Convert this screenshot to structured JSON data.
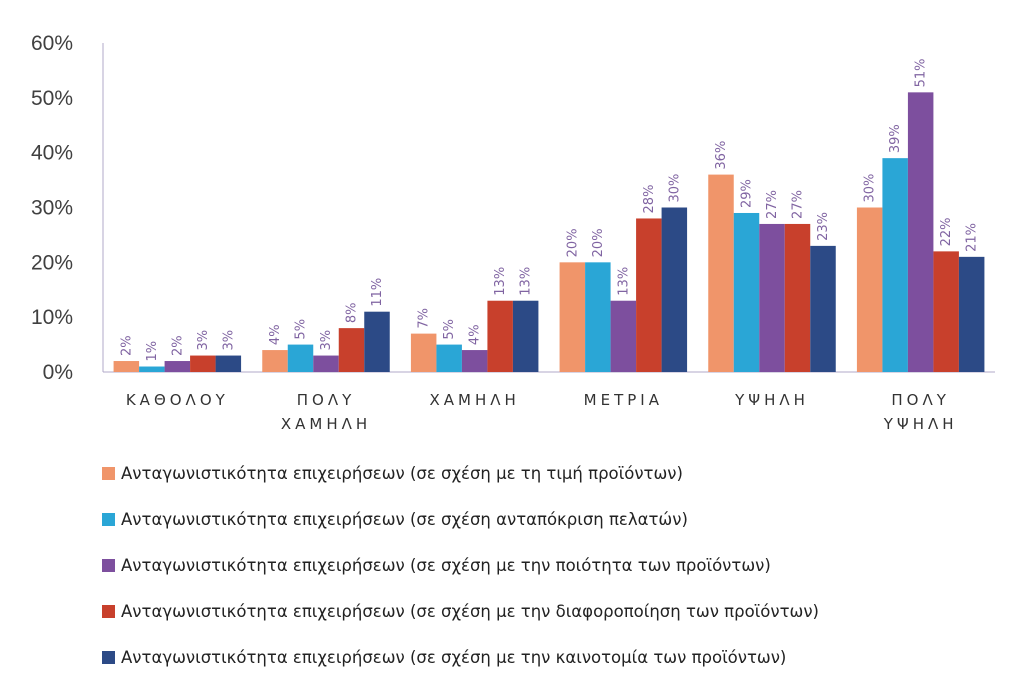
{
  "chart_data": {
    "type": "bar",
    "categories": [
      [
        "ΚΑΘΟΛΟΥ"
      ],
      [
        "ΠΟΛΥ",
        "ΧΑΜΗΛΗ"
      ],
      [
        "ΧΑΜΗΛΗ"
      ],
      [
        "ΜΕΤΡΙΑ"
      ],
      [
        "ΥΨΗΛΗ"
      ],
      [
        "ΠΟΛΥ",
        "ΥΨΗΛΗ"
      ]
    ],
    "ylim": [
      0,
      60
    ],
    "yticks": [
      "0%",
      "10%",
      "20%",
      "30%",
      "40%",
      "50%",
      "60%"
    ],
    "value_format": "percent",
    "grid": false,
    "legend_position": "bottom",
    "series": [
      {
        "name": "Ανταγωνιστικότητα επιχειρήσεων (σε σχέση με τη τιμή προϊόντων)",
        "color": "#f0956a",
        "values": [
          2,
          4,
          7,
          20,
          36,
          30
        ],
        "labels": [
          "2%",
          "4%",
          "7%",
          "20%",
          "36%",
          "30%"
        ]
      },
      {
        "name": "Ανταγωνιστικότητα επιχειρήσεων (σε σχέση ανταπόκριση πελατών)",
        "color": "#2aa6d6",
        "values": [
          1,
          5,
          5,
          20,
          29,
          39
        ],
        "labels": [
          "1%",
          "5%",
          "5%",
          "20%",
          "29%",
          "39%"
        ]
      },
      {
        "name": "Ανταγωνιστικότητα επιχειρήσεων (σε σχέση με την ποιότητα των προϊόντων)",
        "color": "#7d4f9e",
        "values": [
          2,
          3,
          4,
          13,
          27,
          51
        ],
        "labels": [
          "2%",
          "3%",
          "4%",
          "13%",
          "27%",
          "51%"
        ]
      },
      {
        "name": "Ανταγωνιστικότητα επιχειρήσεων (σε σχέση με την διαφοροποίηση των προϊόντων)",
        "color": "#c8402c",
        "values": [
          3,
          8,
          13,
          28,
          27,
          22
        ],
        "labels": [
          "3%",
          "8%",
          "13%",
          "28%",
          "27%",
          "22%"
        ]
      },
      {
        "name": "Ανταγωνιστικότητα επιχειρήσεων (σε σχέση με την καινοτομία των προϊόντων)",
        "color": "#2c4a86",
        "values": [
          3,
          11,
          13,
          30,
          23,
          21
        ],
        "labels": [
          "3%",
          "11%",
          "13%",
          "30%",
          "23%",
          "21%"
        ]
      }
    ]
  }
}
